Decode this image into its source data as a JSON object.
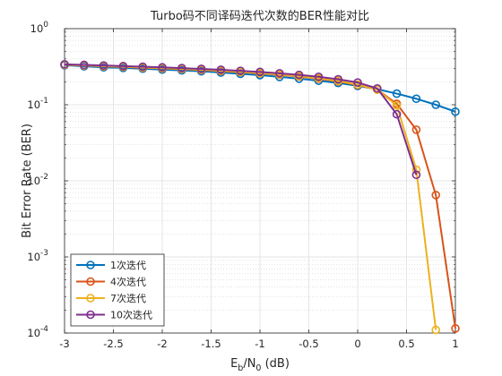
{
  "chart_data": {
    "type": "line",
    "title": "Turbo码不同译码迭代次数的BER性能对比",
    "xlabel": {
      "main": "E",
      "sub1": "b",
      "mid": "/N",
      "sub2": "0",
      "tail": " (dB)"
    },
    "ylabel": "Bit Error Rate (BER)",
    "xlim": [
      -3,
      1
    ],
    "ylim": [
      0.0001,
      1
    ],
    "yscale": "log",
    "grid": true,
    "minor_grid": true,
    "legend_position": "bottom-left",
    "xticks": [
      -3,
      -2.5,
      -2,
      -1.5,
      -1,
      -0.5,
      0,
      0.5,
      1
    ],
    "xtick_labels": [
      "-3",
      "-2.5",
      "-2",
      "-1.5",
      "-1",
      "-0.5",
      "0",
      "0.5",
      "1"
    ],
    "yticks": [
      {
        "value": 1,
        "base": "10",
        "exp": "0"
      },
      {
        "value": 0.1,
        "base": "10",
        "exp": "-1"
      },
      {
        "value": 0.01,
        "base": "10",
        "exp": "-2"
      },
      {
        "value": 0.001,
        "base": "10",
        "exp": "-3"
      },
      {
        "value": 0.0001,
        "base": "10",
        "exp": "-4"
      }
    ],
    "series": [
      {
        "name": "1次迭代",
        "color": "#0072BD",
        "x": [
          -3,
          -2.8,
          -2.6,
          -2.4,
          -2.2,
          -2.0,
          -1.8,
          -1.6,
          -1.4,
          -1.2,
          -1.0,
          -0.8,
          -0.6,
          -0.4,
          -0.2,
          0.0,
          0.2,
          0.4,
          0.6,
          0.8,
          1.0
        ],
        "y": [
          0.33,
          0.32,
          0.31,
          0.305,
          0.298,
          0.29,
          0.283,
          0.275,
          0.265,
          0.255,
          0.245,
          0.232,
          0.22,
          0.207,
          0.193,
          0.177,
          0.16,
          0.14,
          0.12,
          0.1,
          0.081
        ]
      },
      {
        "name": "4次迭代",
        "color": "#D95319",
        "x": [
          -3,
          -2.8,
          -2.6,
          -2.4,
          -2.2,
          -2.0,
          -1.8,
          -1.6,
          -1.4,
          -1.2,
          -1.0,
          -0.8,
          -0.6,
          -0.4,
          -0.2,
          0.0,
          0.2,
          0.4,
          0.6,
          0.8,
          1.0
        ],
        "y": [
          0.335,
          0.328,
          0.32,
          0.314,
          0.307,
          0.301,
          0.294,
          0.286,
          0.277,
          0.268,
          0.258,
          0.247,
          0.235,
          0.22,
          0.203,
          0.182,
          0.158,
          0.103,
          0.047,
          0.0065,
          0.000115
        ]
      },
      {
        "name": "7次迭代",
        "color": "#EDB120",
        "x": [
          -3,
          -2.8,
          -2.6,
          -2.4,
          -2.2,
          -2.0,
          -1.8,
          -1.6,
          -1.4,
          -1.2,
          -1.0,
          -0.8,
          -0.6,
          -0.4,
          -0.2,
          0.0,
          0.2,
          0.4,
          0.6,
          0.8
        ],
        "y": [
          0.335,
          0.329,
          0.322,
          0.316,
          0.309,
          0.303,
          0.296,
          0.289,
          0.28,
          0.271,
          0.261,
          0.25,
          0.238,
          0.223,
          0.206,
          0.184,
          0.158,
          0.098,
          0.014,
          0.00011
        ]
      },
      {
        "name": "10次迭代",
        "color": "#7E2F8E",
        "x": [
          -3,
          -2.8,
          -2.6,
          -2.4,
          -2.2,
          -2.0,
          -1.8,
          -1.6,
          -1.4,
          -1.2,
          -1.0,
          -0.8,
          -0.6,
          -0.4,
          -0.2,
          0.0,
          0.2,
          0.4,
          0.6
        ],
        "y": [
          0.34,
          0.334,
          0.328,
          0.322,
          0.316,
          0.31,
          0.303,
          0.296,
          0.288,
          0.279,
          0.27,
          0.259,
          0.247,
          0.233,
          0.216,
          0.196,
          0.164,
          0.075,
          0.012
        ]
      }
    ]
  }
}
